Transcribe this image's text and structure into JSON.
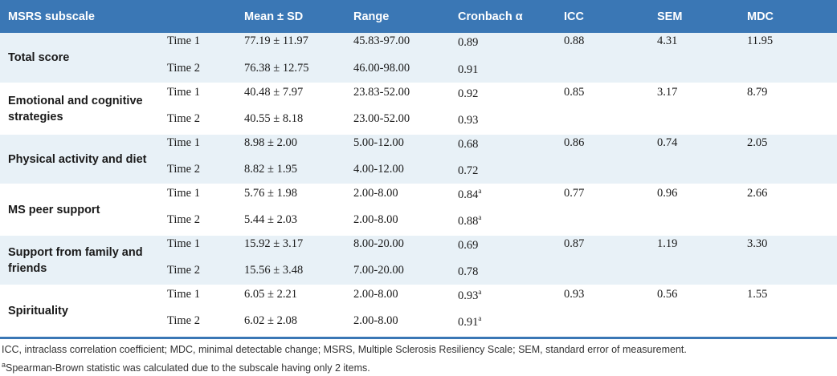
{
  "headers": [
    "MSRS subscale",
    "Mean ± SD",
    "Range",
    "Cronbach α",
    "ICC",
    "SEM",
    "MDC"
  ],
  "rows": [
    {
      "subscale": "Total score",
      "t1": {
        "time": "Time 1",
        "mean": "77.19 ± 11.97",
        "range": "45.83-97.00",
        "alpha": "0.89",
        "sup": ""
      },
      "t2": {
        "time": "Time 2",
        "mean": "76.38 ± 12.75",
        "range": "46.00-98.00",
        "alpha": "0.91",
        "sup": ""
      },
      "icc": "0.88",
      "sem": "4.31",
      "mdc": "11.95"
    },
    {
      "subscale": "Emotional and cognitive strategies",
      "t1": {
        "time": "Time 1",
        "mean": "40.48 ± 7.97",
        "range": "23.83-52.00",
        "alpha": "0.92",
        "sup": ""
      },
      "t2": {
        "time": "Time 2",
        "mean": "40.55 ± 8.18",
        "range": "23.00-52.00",
        "alpha": "0.93",
        "sup": ""
      },
      "icc": "0.85",
      "sem": "3.17",
      "mdc": "8.79"
    },
    {
      "subscale": "Physical activity and diet",
      "t1": {
        "time": "Time 1",
        "mean": "8.98 ± 2.00",
        "range": "5.00-12.00",
        "alpha": "0.68",
        "sup": ""
      },
      "t2": {
        "time": "Time 2",
        "mean": "8.82 ± 1.95",
        "range": "4.00-12.00",
        "alpha": "0.72",
        "sup": ""
      },
      "icc": "0.86",
      "sem": "0.74",
      "mdc": "2.05"
    },
    {
      "subscale": "MS peer support",
      "t1": {
        "time": "Time 1",
        "mean": "5.76 ± 1.98",
        "range": "2.00-8.00",
        "alpha": "0.84",
        "sup": "a"
      },
      "t2": {
        "time": "Time 2",
        "mean": "5.44 ± 2.03",
        "range": "2.00-8.00",
        "alpha": "0.88",
        "sup": "a"
      },
      "icc": "0.77",
      "sem": "0.96",
      "mdc": "2.66"
    },
    {
      "subscale": "Support from family and friends",
      "t1": {
        "time": "Time 1",
        "mean": "15.92 ± 3.17",
        "range": "8.00-20.00",
        "alpha": "0.69",
        "sup": ""
      },
      "t2": {
        "time": "Time 2",
        "mean": "15.56 ± 3.48",
        "range": "7.00-20.00",
        "alpha": "0.78",
        "sup": ""
      },
      "icc": "0.87",
      "sem": "1.19",
      "mdc": "3.30"
    },
    {
      "subscale": "Spirituality",
      "t1": {
        "time": "Time 1",
        "mean": "6.05 ± 2.21",
        "range": "2.00-8.00",
        "alpha": "0.93",
        "sup": "a"
      },
      "t2": {
        "time": "Time 2",
        "mean": "6.02 ± 2.08",
        "range": "2.00-8.00",
        "alpha": "0.91",
        "sup": "a"
      },
      "icc": "0.93",
      "sem": "0.56",
      "mdc": "1.55"
    }
  ],
  "footnotes": {
    "abbrev": "ICC, intraclass correlation coefficient; MDC, minimal detectable change; MSRS, Multiple Sclerosis Resiliency Scale; SEM, standard error of measurement.",
    "a_marker": "a",
    "a_text": "Spearman-Brown statistic was calculated due to the subscale having only 2 items."
  },
  "colors": {
    "header_bg": "#3a77b5",
    "shade": "#e8f1f7"
  }
}
